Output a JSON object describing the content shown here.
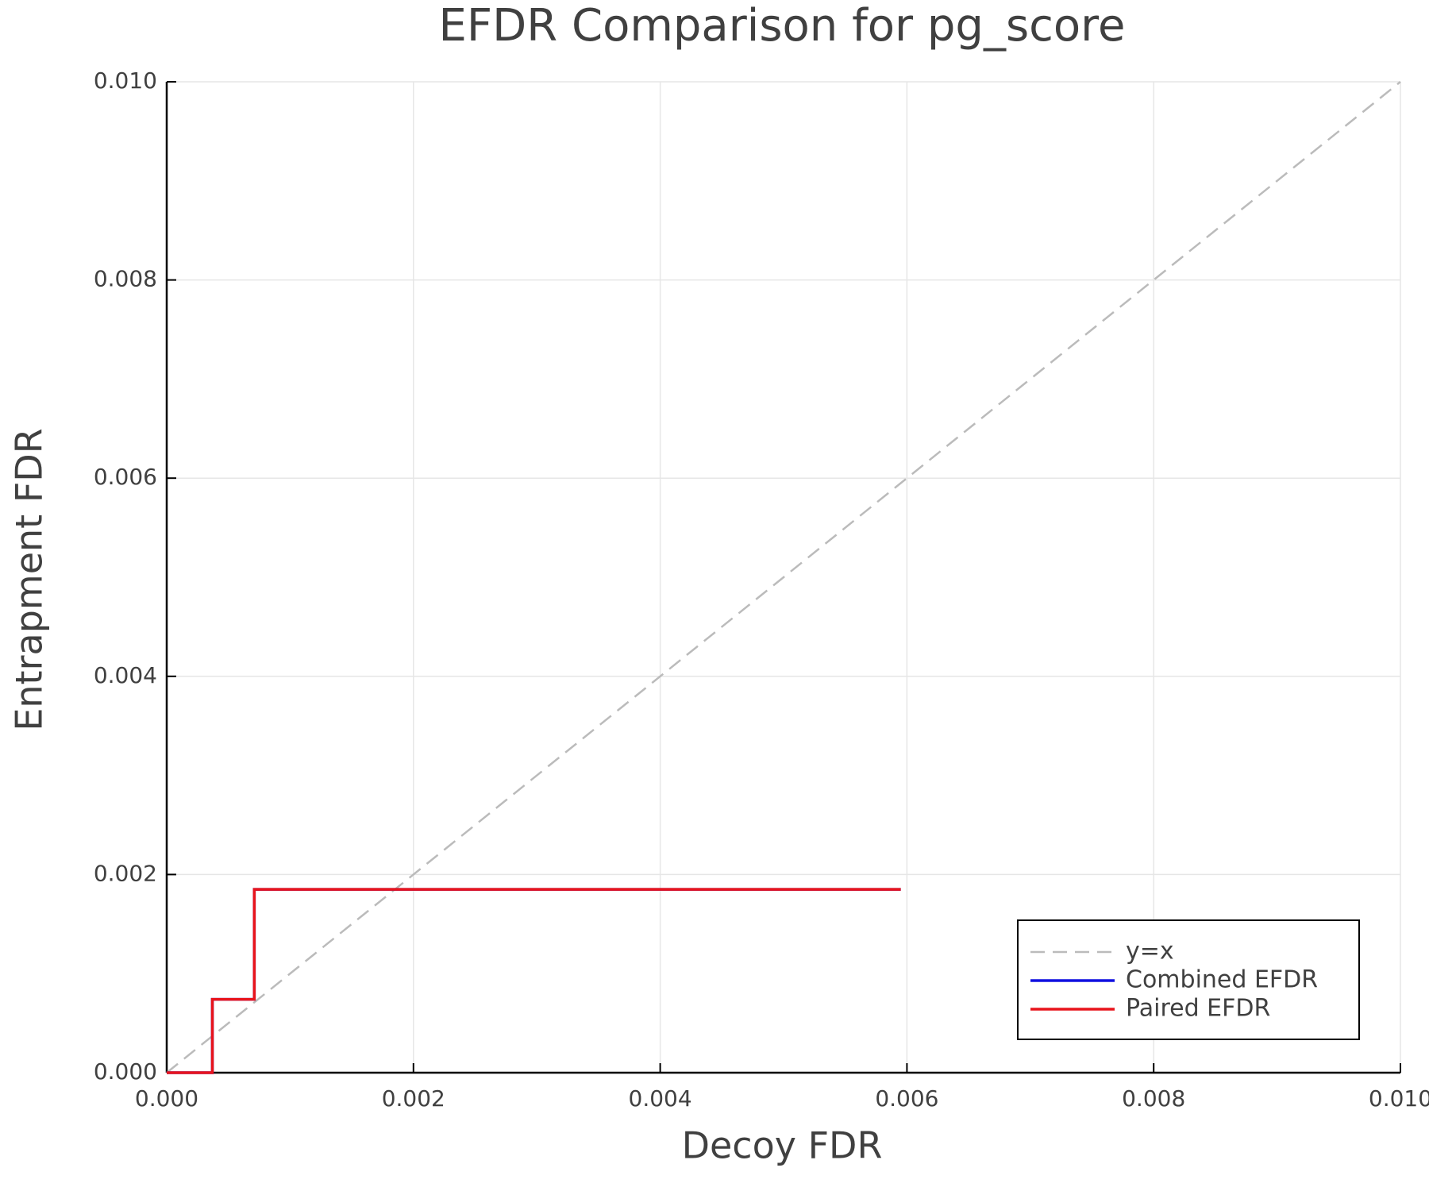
{
  "chart_data": {
    "type": "line",
    "title": "EFDR Comparison for pg_score",
    "x_label": "Decoy FDR",
    "y_label": "Entrapment FDR",
    "xlim": [
      0,
      0.01
    ],
    "ylim": [
      0,
      0.01
    ],
    "xticks": [
      {
        "value": 0,
        "label": "0.000"
      },
      {
        "value": 0.002,
        "label": "0.002"
      },
      {
        "value": 0.004,
        "label": "0.004"
      },
      {
        "value": 0.006,
        "label": "0.006"
      },
      {
        "value": 0.008,
        "label": "0.008"
      },
      {
        "value": 0.01,
        "label": "0.010"
      }
    ],
    "yticks": [
      {
        "value": 0,
        "label": "0.000"
      },
      {
        "value": 0.002,
        "label": "0.002"
      },
      {
        "value": 0.004,
        "label": "0.004"
      },
      {
        "value": 0.006,
        "label": "0.006"
      },
      {
        "value": 0.008,
        "label": "0.008"
      },
      {
        "value": 0.01,
        "label": "0.010"
      }
    ],
    "grid": true,
    "legend": "bottom right",
    "series": [
      {
        "name": "y=x",
        "color": "#bbbbbb",
        "dashed": true,
        "x": [
          0,
          0.01
        ],
        "values": [
          0,
          0.01
        ]
      },
      {
        "name": "Combined EFDR",
        "color": "#1010e0",
        "dashed": false,
        "x": [
          0,
          0.00037,
          0.00037,
          0.00071,
          0.00071,
          0.00595
        ],
        "values": [
          0,
          0,
          0.00074,
          0.00074,
          0.00185,
          0.00185
        ]
      },
      {
        "name": "Paired EFDR",
        "color": "#e8141c",
        "dashed": false,
        "x": [
          0,
          0.00037,
          0.00037,
          0.00071,
          0.00071,
          0.00595
        ],
        "values": [
          0,
          0,
          0.00074,
          0.00074,
          0.00185,
          0.00185
        ]
      }
    ]
  }
}
